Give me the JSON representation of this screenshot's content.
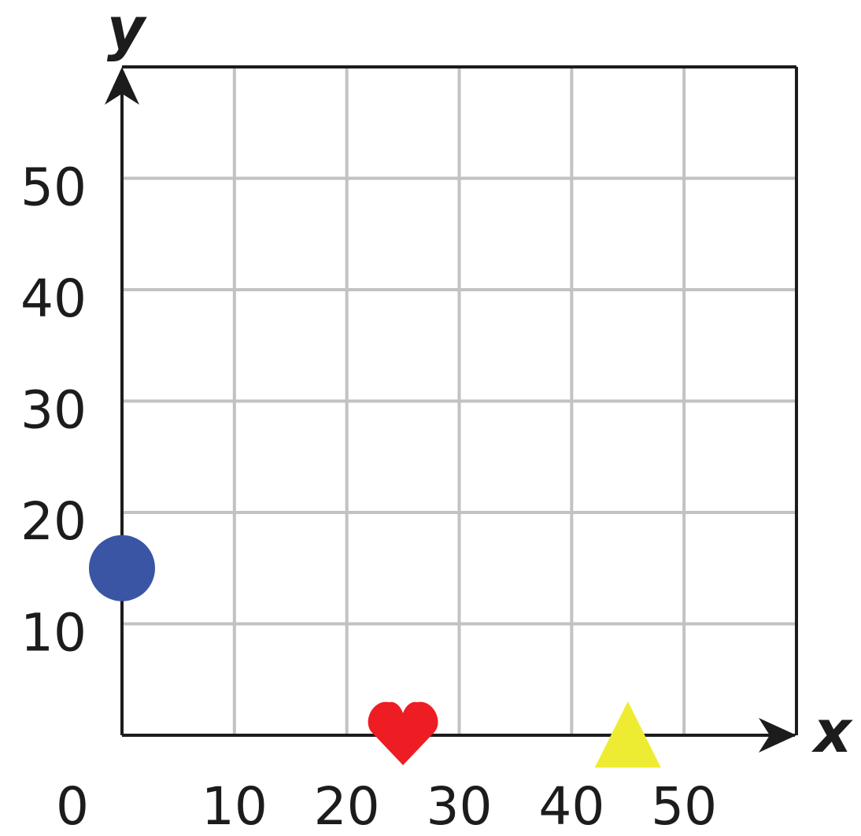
{
  "chart_data": {
    "type": "scatter",
    "xlabel": "x",
    "ylabel": "y",
    "xlim": [
      0,
      60
    ],
    "ylim": [
      0,
      60
    ],
    "x_ticks": [
      "0",
      "10",
      "20",
      "30",
      "40",
      "50"
    ],
    "y_ticks": [
      "10",
      "20",
      "30",
      "40",
      "50"
    ],
    "grid": true,
    "points": [
      {
        "shape": "circle",
        "x": 0,
        "y": 15,
        "color": "#3a55a4"
      },
      {
        "shape": "heart",
        "x": 25,
        "y": 0,
        "color": "#ee1d23"
      },
      {
        "shape": "triangle",
        "x": 45,
        "y": 0,
        "color": "#eeec32"
      }
    ]
  },
  "colors": {
    "grid": "#c2c2c2",
    "axis": "#1c1c1c"
  }
}
